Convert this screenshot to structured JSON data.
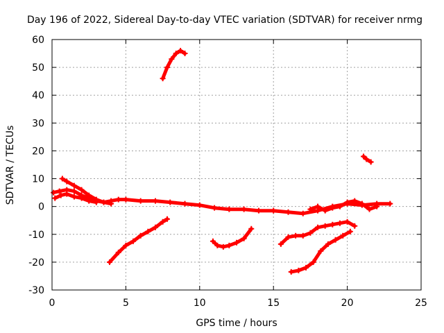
{
  "chart_data": {
    "type": "scatter",
    "title": "Day 196 of 2022, Sidereal Day-to-day VTEC variation (SDTVAR) for receiver nrmg",
    "xlabel": "GPS time / hours",
    "ylabel": "SDTVAR / TECUs",
    "xlim": [
      0,
      25
    ],
    "ylim": [
      -30,
      60
    ],
    "xticks": [
      0,
      5,
      10,
      15,
      20,
      25
    ],
    "yticks": [
      -30,
      -20,
      -10,
      0,
      10,
      20,
      30,
      40,
      50,
      60
    ],
    "grid": true,
    "marker_color": "#ff0000",
    "series": [
      {
        "name": "arc-main-baseline",
        "x": [
          0.1,
          0.5,
          1.0,
          1.5,
          2.0,
          2.5,
          3.0,
          3.5,
          4.0,
          4.5,
          5.0,
          6.0,
          7.0,
          8.0,
          9.0,
          10.0,
          11.0,
          12.0,
          13.0,
          14.0,
          15.0,
          16.0,
          17.0,
          18.0,
          19.0,
          20.0,
          21.0,
          22.0,
          22.9
        ],
        "y": [
          5,
          5.5,
          6,
          5.5,
          4,
          3,
          2,
          1.5,
          2,
          2.5,
          2.5,
          2,
          2,
          1.5,
          1,
          0.5,
          -0.5,
          -1,
          -1,
          -1.5,
          -1.5,
          -2,
          -2.5,
          -1.5,
          0,
          1,
          0.5,
          1,
          1
        ]
      },
      {
        "name": "arc-early-high",
        "x": [
          0.7,
          1.0,
          1.5,
          2.0,
          2.5,
          3.0,
          3.5,
          4.0
        ],
        "y": [
          10,
          9,
          7.5,
          6,
          4,
          2.5,
          1.5,
          1
        ]
      },
      {
        "name": "arc-early-low",
        "x": [
          0.2,
          0.6,
          1.0,
          1.5,
          2.0,
          2.5,
          3.0
        ],
        "y": [
          3,
          4,
          4.5,
          3.5,
          3,
          2,
          1.5
        ]
      },
      {
        "name": "arc-peak",
        "x": [
          7.5,
          7.8,
          8.1,
          8.4,
          8.7,
          9.0
        ],
        "y": [
          46,
          50,
          53,
          55,
          56,
          55
        ]
      },
      {
        "name": "arc-descending-left",
        "x": [
          3.9,
          4.5,
          5.0,
          5.5,
          6.0,
          6.5,
          7.0,
          7.5,
          7.8
        ],
        "y": [
          -20,
          -16.5,
          -14,
          -12.5,
          -10.5,
          -9,
          -7.5,
          -5.5,
          -4.5
        ]
      },
      {
        "name": "arc-dip-midday",
        "x": [
          10.9,
          11.2,
          11.6,
          12.0,
          12.5,
          13.0,
          13.5
        ],
        "y": [
          -12.5,
          -14,
          -14.5,
          -14,
          -13,
          -11.5,
          -8
        ]
      },
      {
        "name": "arc-rise-late",
        "x": [
          15.5,
          16.0,
          16.5,
          17.0,
          17.5,
          18.0,
          18.5,
          19.0,
          19.5,
          20.0,
          20.5
        ],
        "y": [
          -13.5,
          -11,
          -10.5,
          -10.5,
          -9.5,
          -7.5,
          -7,
          -6.5,
          -6,
          -5.5,
          -7
        ]
      },
      {
        "name": "arc-lowest-late",
        "x": [
          16.2,
          16.7,
          17.2,
          17.7,
          18.2,
          18.7,
          19.2,
          19.7,
          20.2
        ],
        "y": [
          -23.5,
          -23,
          -22,
          -20,
          -16,
          -13.5,
          -12,
          -10.5,
          -9
        ]
      },
      {
        "name": "arc-late-wave",
        "x": [
          17.5,
          18.0,
          18.5,
          19.0,
          19.5,
          20.0,
          20.5,
          21.0,
          21.5,
          22.0
        ],
        "y": [
          -1,
          0,
          -1.5,
          -0.5,
          0,
          1.5,
          2,
          1,
          -1,
          0
        ]
      },
      {
        "name": "arc-short-high",
        "x": [
          21.1,
          21.3,
          21.6
        ],
        "y": [
          18,
          17,
          16
        ]
      }
    ]
  }
}
